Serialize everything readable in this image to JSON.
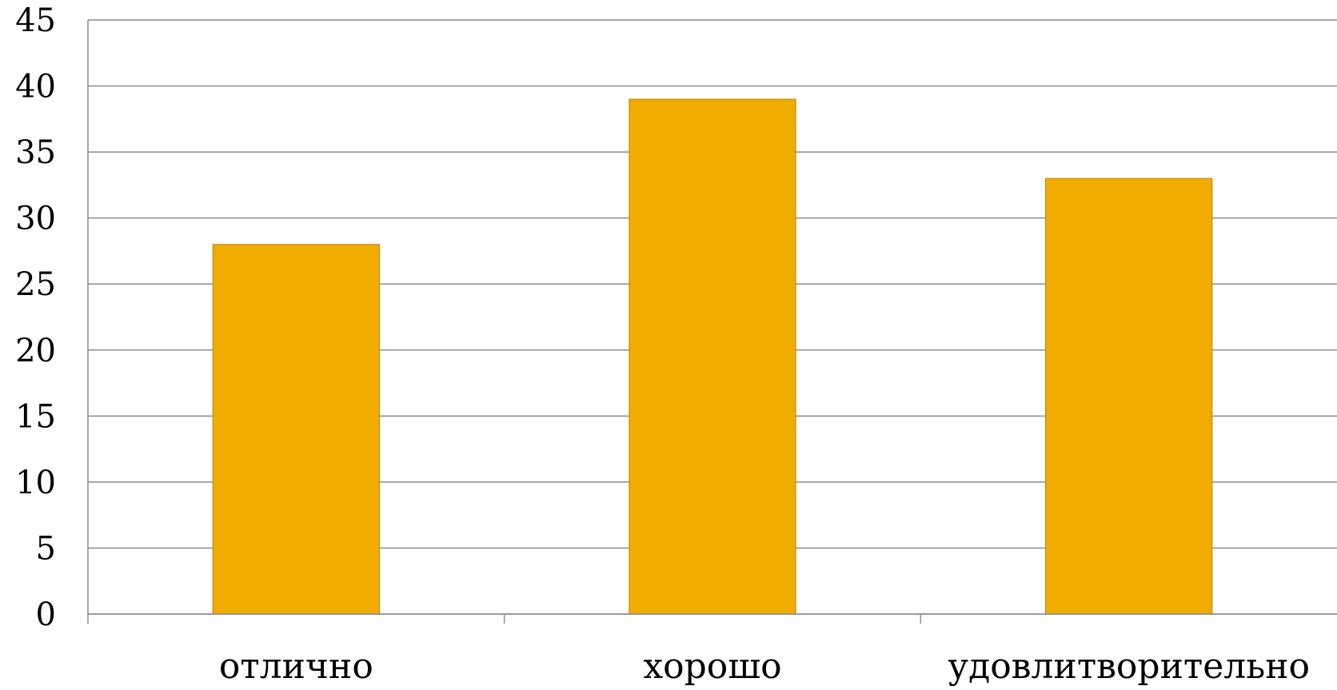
{
  "chart_data": {
    "type": "bar",
    "categories": [
      "отлично",
      "хорошо",
      "удовлитворительно"
    ],
    "values": [
      28,
      39,
      33
    ],
    "ylim": [
      0,
      45
    ],
    "yticks": [
      0,
      5,
      10,
      15,
      20,
      25,
      30,
      35,
      40,
      45
    ],
    "grid": true,
    "title": "",
    "xlabel": "",
    "ylabel": "",
    "colors": {
      "bar": "#F0AC00",
      "bar_stroke": "#B8860B",
      "grid": "#8C8C8C",
      "axis": "#8C8C8C"
    }
  }
}
